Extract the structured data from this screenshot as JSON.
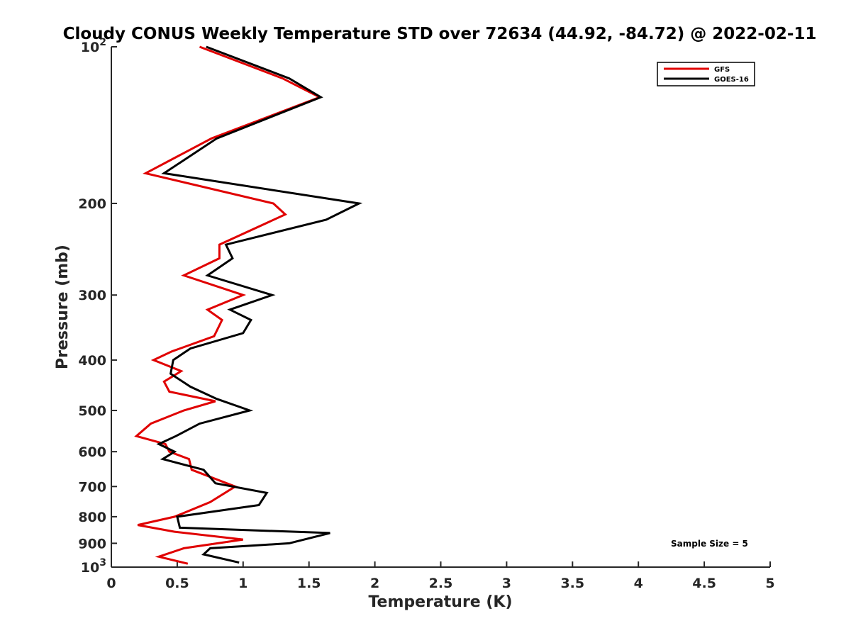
{
  "chart_data": {
    "type": "line",
    "title": "Cloudy CONUS Weekly Temperature STD over 72634 (44.92, -84.72) @ 2022-02-11",
    "xlabel": "Temperature (K)",
    "ylabel": "Pressure (mb)",
    "xlim": [
      0,
      5
    ],
    "ylim": [
      100,
      1000
    ],
    "y_scale": "log",
    "y_reversed": true,
    "grid": false,
    "legend_position": "top-right",
    "x_ticks": [
      0,
      0.5,
      1,
      1.5,
      2,
      2.5,
      3,
      3.5,
      4,
      4.5,
      5
    ],
    "x_tick_labels": [
      "0",
      "0.5",
      "1",
      "1.5",
      "2",
      "2.5",
      "3",
      "3.5",
      "4",
      "4.5",
      "5"
    ],
    "y_ticks": [
      100,
      200,
      300,
      400,
      500,
      600,
      700,
      800,
      900,
      1000
    ],
    "y_tick_labels": [
      "10^2",
      "200",
      "300",
      "400",
      "500",
      "600",
      "700",
      "800",
      "900",
      "10^3"
    ],
    "annotation": "Sample Size = 5",
    "series": [
      {
        "name": "GFS",
        "color": "#e00000",
        "pressure": [
          100,
          115,
          125,
          150,
          175,
          200,
          210,
          240,
          255,
          275,
          300,
          320,
          335,
          360,
          385,
          400,
          420,
          440,
          460,
          480,
          500,
          530,
          560,
          580,
          600,
          620,
          650,
          700,
          750,
          800,
          830,
          855,
          885,
          920,
          955,
          985
        ],
        "temperature": [
          0.67,
          1.3,
          1.58,
          0.76,
          0.26,
          1.23,
          1.32,
          0.82,
          0.82,
          0.55,
          1.0,
          0.73,
          0.84,
          0.78,
          0.46,
          0.32,
          0.53,
          0.4,
          0.44,
          0.79,
          0.55,
          0.3,
          0.19,
          0.41,
          0.44,
          0.59,
          0.61,
          0.94,
          0.75,
          0.48,
          0.2,
          0.48,
          1.0,
          0.55,
          0.36,
          0.58
        ]
      },
      {
        "name": "GOES-16",
        "color": "#000000",
        "pressure": [
          100,
          115,
          125,
          150,
          175,
          200,
          215,
          240,
          255,
          275,
          300,
          320,
          335,
          355,
          380,
          400,
          425,
          450,
          475,
          500,
          530,
          560,
          580,
          600,
          620,
          650,
          690,
          720,
          760,
          800,
          840,
          860,
          900,
          920,
          945,
          980
        ],
        "temperature": [
          0.72,
          1.35,
          1.59,
          0.8,
          0.4,
          1.88,
          1.63,
          0.87,
          0.92,
          0.73,
          1.22,
          0.9,
          1.06,
          1.0,
          0.6,
          0.47,
          0.45,
          0.6,
          0.8,
          1.05,
          0.67,
          0.49,
          0.36,
          0.48,
          0.39,
          0.7,
          0.79,
          1.18,
          1.12,
          0.5,
          0.52,
          1.66,
          1.35,
          0.75,
          0.7,
          0.97
        ]
      }
    ]
  }
}
